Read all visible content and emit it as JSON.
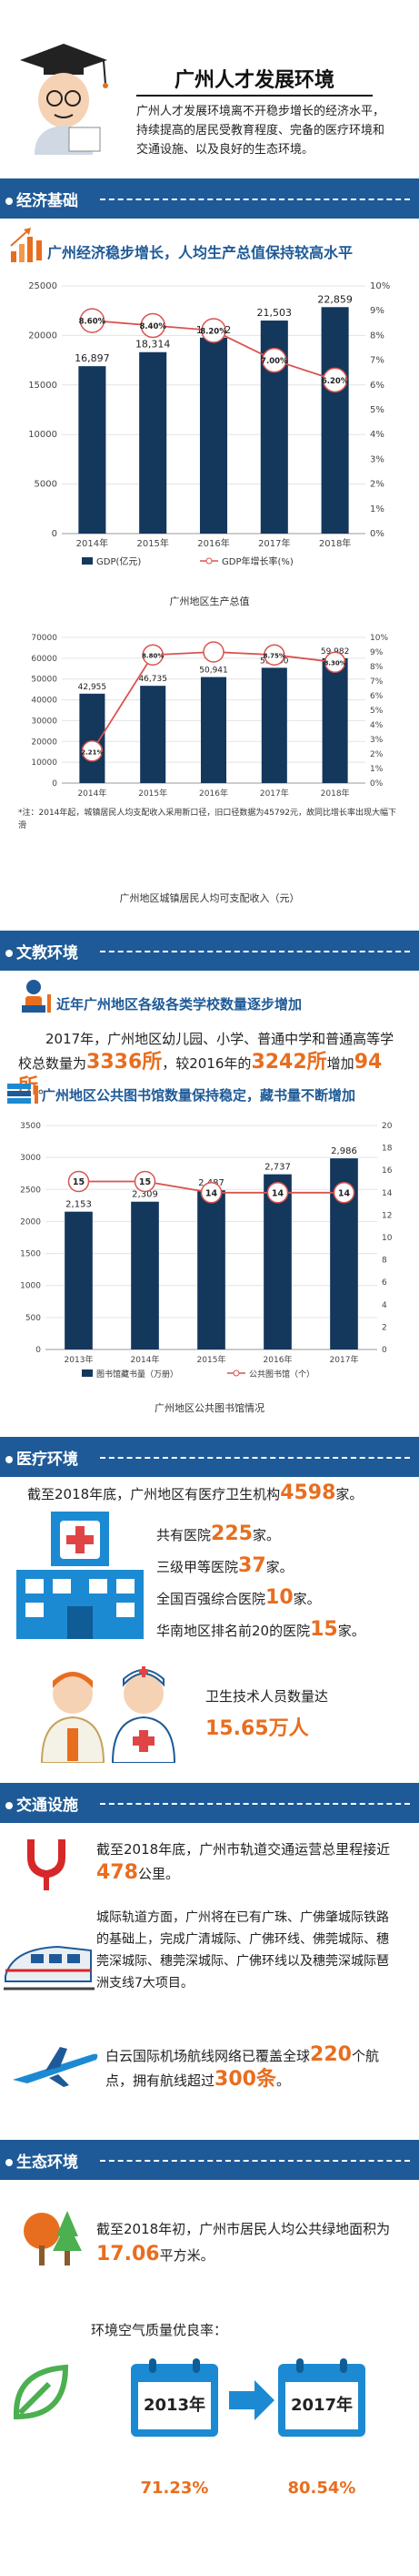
{
  "page": {
    "title": "广州人才发展环境",
    "intro": "广州人才发展环境离不开稳步增长的经济水平，持续提高的居民受教育程度、完备的医疗环境和交通设施、以及良好的生态环境。"
  },
  "sections": {
    "economy": "经济基础",
    "culture": "文教环境",
    "medical": "医疗环境",
    "transport": "交通设施",
    "ecology": "生态环境"
  },
  "economy": {
    "headline": "广州经济稳步增长，人均生产总值保持较高水平",
    "chart1_caption": "广州地区生产总值",
    "chart2_caption": "广州地区城镇居民人均可支配收入（元）",
    "chart2_note": "*注：2014年起，城镇居民人均支配收入采用新口径，旧口径数据为45792元，故同比增长率出现大幅下滑"
  },
  "culture": {
    "schools_headline": "近年广州地区各级各类学校数量逐步增加",
    "schools_text_a": "2017年，广州地区幼儿园、小学、普通中学和普通高等学校总数量为",
    "schools_total_2017": "3336所",
    "schools_text_b": "，较2016年的",
    "schools_total_2016": "3242所",
    "schools_text_c": "增加",
    "schools_increase": "94所",
    "schools_text_d": "。",
    "library_headline": "广州地区公共图书馆数量保持稳定，藏书量不断增加",
    "chart3_caption": "广州地区公共图书馆情况"
  },
  "medical": {
    "intro_a": "截至2018年底，广州地区有医疗卫生机构",
    "institutions": "4598",
    "intro_b": "家。",
    "hospitals_a": "共有医院",
    "hospitals": "225",
    "hospitals_b": "家。",
    "grade3a_a": "三级甲等医院",
    "grade3a": "37",
    "grade3a_b": "家。",
    "top100_a": "全国百强综合医院",
    "top100": "10",
    "top100_b": "家。",
    "south_top20_a": "华南地区排名前20的医院",
    "south_top20": "15",
    "south_top20_b": "家。",
    "staff_label": "卫生技术人员数量达",
    "staff_value": "15.65万人"
  },
  "transport": {
    "metro_a": "截至2018年底，广州市轨道交通运营总里程接近",
    "metro_km": "478",
    "metro_b": "公里。",
    "rail_text": "城际轨道方面，广州将在已有广珠、广佛肇城际铁路的基础上，完成广清城际、广佛环线、佛莞城际、穗莞深城际、穗莞深城际、广佛环线以及穗莞深城际琶洲支线7大项目。",
    "air_a": "白云国际机场航线网络已覆盖全球",
    "air_points": "220",
    "air_b": "个航点，拥有航线超过",
    "air_routes": "300条",
    "air_c": "。"
  },
  "ecology": {
    "green_a": "截至2018年初，广州市居民人均公共绿地面积为",
    "green_value": "17.06",
    "green_b": "平方米。",
    "air_quality_label": "环境空气质量优良率：",
    "year_a": "2013年",
    "rate_a": "71.23%",
    "year_b": "2017年",
    "rate_b": "80.54%"
  },
  "colors": {
    "navy": "#14375c",
    "header_blue": "#1e5a97",
    "accent_orange": "#e86e1f",
    "growth_red": "#d9534f"
  },
  "chart_data": [
    {
      "type": "bar",
      "categories": [
        "2014年",
        "2015年",
        "2016年",
        "2017年",
        "2018年"
      ],
      "series": [
        {
          "name": "GDP(亿元)",
          "values": [
            16897,
            18314,
            19782,
            21503,
            22859
          ],
          "labels": [
            "16,897",
            "18,314",
            "19,782",
            "21,503",
            "22,859"
          ]
        },
        {
          "name": "GDP年增长率(%)",
          "values": [
            8.6,
            8.4,
            8.2,
            7.0,
            6.2
          ],
          "labels": [
            "8.60%",
            "8.40%",
            "8.20%",
            "7.00%",
            "6.20%"
          ],
          "axis": "right"
        }
      ],
      "ylim": [
        0,
        25000
      ],
      "yticks": [
        "0",
        "5000",
        "10000",
        "15000",
        "20000",
        "25000"
      ],
      "y2lim": [
        0,
        10
      ],
      "y2ticks": [
        "0%",
        "1%",
        "2%",
        "3%",
        "4%",
        "5%",
        "6%",
        "7%",
        "8%",
        "9%",
        "10%"
      ],
      "legend": "bottom"
    },
    {
      "type": "bar",
      "categories": [
        "2014年",
        "2015年",
        "2016年",
        "2017年",
        "2018年"
      ],
      "series": [
        {
          "values": [
            42955,
            46735,
            50941,
            55400,
            59982
          ],
          "labels": [
            "42,955",
            "46,735",
            "50,941",
            "55,400",
            "59,982"
          ]
        },
        {
          "values": [
            2.2,
            8.8,
            9.0,
            8.8,
            8.3
          ],
          "labels": [
            "2.21%",
            "8.80%",
            "",
            "8.75%",
            "8.30%"
          ],
          "axis": "right"
        }
      ],
      "ylim": [
        0,
        70000
      ],
      "yticks": [
        "0",
        "10000",
        "20000",
        "30000",
        "40000",
        "50000",
        "60000",
        "70000"
      ],
      "y2lim": [
        0,
        10
      ],
      "y2ticks": [
        "0%",
        "1%",
        "2%",
        "3%",
        "4%",
        "5%",
        "6%",
        "7%",
        "8%",
        "9%",
        "10%"
      ]
    },
    {
      "type": "bar",
      "categories": [
        "2013年",
        "2014年",
        "2015年",
        "2016年",
        "2017年"
      ],
      "series": [
        {
          "name": "图书馆藏书量（万册）",
          "values": [
            2153,
            2309,
            2487,
            2737,
            2986
          ],
          "labels": [
            "2,153",
            "2,309",
            "2,487",
            "2,737",
            "2,986"
          ]
        },
        {
          "name": "公共图书馆（个）",
          "values": [
            15,
            15,
            14,
            14,
            14
          ],
          "labels": [
            "15",
            "15",
            "14",
            "14",
            "14"
          ],
          "axis": "right"
        }
      ],
      "ylim": [
        0,
        3500
      ],
      "yticks": [
        "0",
        "500",
        "1000",
        "1500",
        "2000",
        "2500",
        "3000",
        "3500"
      ],
      "y2lim": [
        0,
        20
      ],
      "y2ticks": [
        "0",
        "2",
        "4",
        "6",
        "8",
        "10",
        "12",
        "14",
        "16",
        "18",
        "20"
      ],
      "legend": "bottom"
    }
  ]
}
